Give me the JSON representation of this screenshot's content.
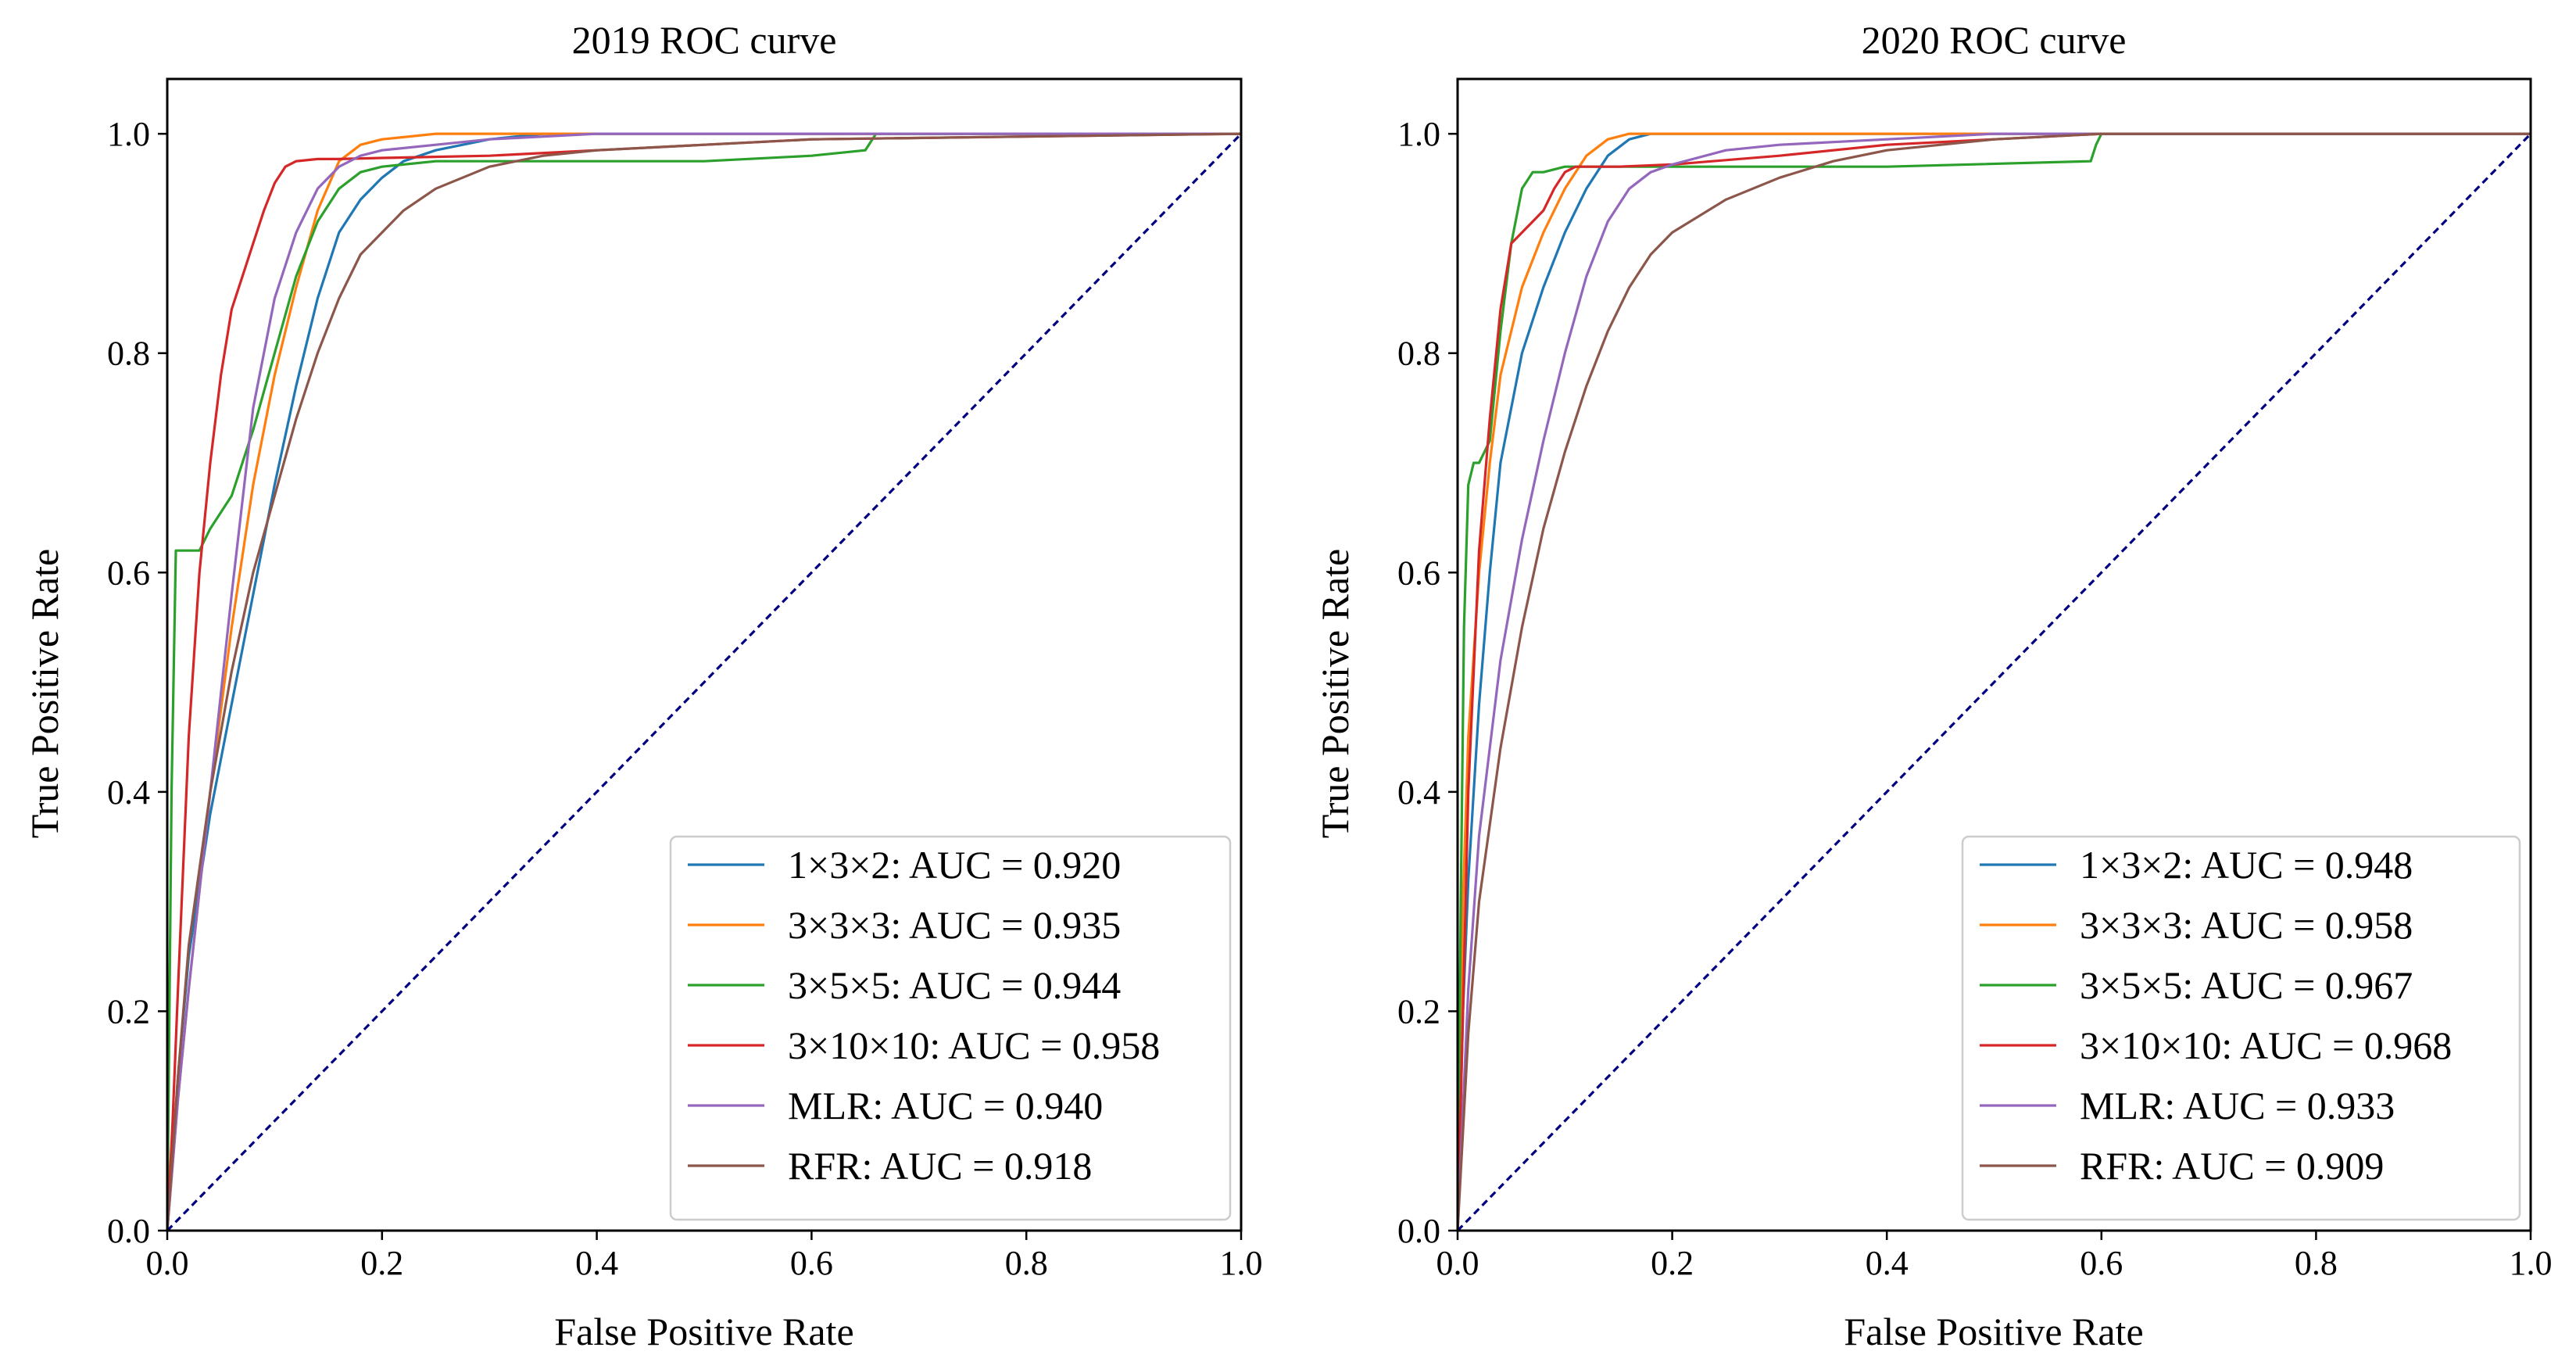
{
  "chart_data": [
    {
      "type": "line",
      "title": "2019 ROC curve",
      "xlabel": "False Positive Rate",
      "ylabel": "True Positive Rate",
      "xlim": [
        0.0,
        1.0
      ],
      "ylim": [
        0.0,
        1.05
      ],
      "xticks": [
        "0.0",
        "0.2",
        "0.4",
        "0.6",
        "0.8",
        "1.0"
      ],
      "yticks": [
        "0.0",
        "0.2",
        "0.4",
        "0.6",
        "0.8",
        "1.0"
      ],
      "legend_position": "lower-right",
      "series": [
        {
          "name": "1×3×2: AUC = 0.920",
          "color": "#1f77b4",
          "x": [
            0,
            0.01,
            0.02,
            0.04,
            0.06,
            0.08,
            0.1,
            0.12,
            0.14,
            0.16,
            0.18,
            0.2,
            0.22,
            0.25,
            0.3,
            0.35,
            1.0
          ],
          "y": [
            0,
            0.14,
            0.25,
            0.38,
            0.48,
            0.58,
            0.68,
            0.77,
            0.85,
            0.91,
            0.94,
            0.96,
            0.975,
            0.985,
            0.995,
            1.0,
            1.0
          ]
        },
        {
          "name": "3×3×3: AUC = 0.935",
          "color": "#ff7f0e",
          "x": [
            0,
            0.01,
            0.02,
            0.04,
            0.06,
            0.08,
            0.1,
            0.12,
            0.14,
            0.16,
            0.18,
            0.2,
            0.25,
            1.0
          ],
          "y": [
            0,
            0.12,
            0.22,
            0.4,
            0.55,
            0.68,
            0.78,
            0.86,
            0.93,
            0.975,
            0.99,
            0.995,
            1.0,
            1.0
          ]
        },
        {
          "name": "3×5×5: AUC = 0.944",
          "color": "#2ca02c",
          "x": [
            0,
            0.004,
            0.008,
            0.01,
            0.03,
            0.04,
            0.06,
            0.08,
            0.1,
            0.12,
            0.14,
            0.16,
            0.18,
            0.2,
            0.25,
            0.3,
            0.5,
            0.6,
            0.65,
            0.66,
            0.67,
            1.0
          ],
          "y": [
            0,
            0.4,
            0.62,
            0.62,
            0.62,
            0.64,
            0.67,
            0.73,
            0.8,
            0.87,
            0.92,
            0.95,
            0.965,
            0.97,
            0.975,
            0.975,
            0.975,
            0.98,
            0.985,
            1.0,
            1.0,
            1.0
          ]
        },
        {
          "name": "3×10×10: AUC = 0.958",
          "color": "#d62728",
          "x": [
            0,
            0.005,
            0.01,
            0.02,
            0.03,
            0.04,
            0.05,
            0.06,
            0.07,
            0.08,
            0.09,
            0.1,
            0.11,
            0.12,
            0.14,
            0.16,
            0.2,
            0.3,
            0.4,
            0.5,
            0.6,
            1.0
          ],
          "y": [
            0,
            0.1,
            0.22,
            0.45,
            0.6,
            0.7,
            0.78,
            0.84,
            0.87,
            0.9,
            0.93,
            0.955,
            0.97,
            0.975,
            0.977,
            0.977,
            0.978,
            0.98,
            0.985,
            0.99,
            0.995,
            1.0
          ]
        },
        {
          "name": "MLR: AUC = 0.940",
          "color": "#9467bd",
          "x": [
            0,
            0.01,
            0.02,
            0.04,
            0.06,
            0.08,
            0.1,
            0.12,
            0.14,
            0.16,
            0.18,
            0.2,
            0.25,
            0.3,
            0.4,
            0.5,
            1.0
          ],
          "y": [
            0,
            0.12,
            0.22,
            0.4,
            0.58,
            0.75,
            0.85,
            0.91,
            0.95,
            0.97,
            0.98,
            0.985,
            0.99,
            0.995,
            1.0,
            1.0,
            1.0
          ]
        },
        {
          "name": "RFR: AUC = 0.918",
          "color": "#8c564b",
          "x": [
            0,
            0.01,
            0.02,
            0.04,
            0.06,
            0.08,
            0.1,
            0.12,
            0.14,
            0.16,
            0.18,
            0.2,
            0.22,
            0.25,
            0.3,
            0.35,
            0.4,
            0.5,
            0.6,
            1.0
          ],
          "y": [
            0,
            0.14,
            0.26,
            0.4,
            0.51,
            0.6,
            0.67,
            0.74,
            0.8,
            0.85,
            0.89,
            0.91,
            0.93,
            0.95,
            0.97,
            0.98,
            0.985,
            0.99,
            0.995,
            1.0
          ]
        }
      ],
      "reference_line": {
        "x": [
          0,
          1
        ],
        "y": [
          0,
          1
        ],
        "color": "#000080",
        "style": "dashed"
      }
    },
    {
      "type": "line",
      "title": "2020 ROC curve",
      "xlabel": "False Positive Rate",
      "ylabel": "True Positive Rate",
      "xlim": [
        0.0,
        1.0
      ],
      "ylim": [
        0.0,
        1.05
      ],
      "xticks": [
        "0.0",
        "0.2",
        "0.4",
        "0.6",
        "0.8",
        "1.0"
      ],
      "yticks": [
        "0.0",
        "0.2",
        "0.4",
        "0.6",
        "0.8",
        "1.0"
      ],
      "legend_position": "lower-right",
      "series": [
        {
          "name": "1×3×2: AUC = 0.948",
          "color": "#1f77b4",
          "x": [
            0,
            0.005,
            0.01,
            0.02,
            0.03,
            0.04,
            0.06,
            0.08,
            0.1,
            0.12,
            0.14,
            0.16,
            0.18,
            0.2,
            1.0
          ],
          "y": [
            0,
            0.2,
            0.32,
            0.48,
            0.6,
            0.7,
            0.8,
            0.86,
            0.91,
            0.95,
            0.98,
            0.995,
            1.0,
            1.0,
            1.0
          ]
        },
        {
          "name": "3×3×3: AUC = 0.958",
          "color": "#ff7f0e",
          "x": [
            0,
            0.005,
            0.01,
            0.02,
            0.03,
            0.04,
            0.06,
            0.08,
            0.1,
            0.12,
            0.14,
            0.16,
            0.2,
            1.0
          ],
          "y": [
            0,
            0.3,
            0.45,
            0.6,
            0.7,
            0.78,
            0.86,
            0.91,
            0.95,
            0.98,
            0.995,
            1.0,
            1.0,
            1.0
          ]
        },
        {
          "name": "3×5×5: AUC = 0.967",
          "color": "#2ca02c",
          "x": [
            0,
            0.003,
            0.006,
            0.01,
            0.015,
            0.02,
            0.03,
            0.04,
            0.05,
            0.06,
            0.07,
            0.08,
            0.1,
            0.2,
            0.4,
            0.59,
            0.595,
            0.6,
            1.0
          ],
          "y": [
            0,
            0.3,
            0.55,
            0.68,
            0.7,
            0.7,
            0.72,
            0.82,
            0.9,
            0.95,
            0.965,
            0.965,
            0.97,
            0.97,
            0.97,
            0.975,
            0.99,
            1.0,
            1.0
          ]
        },
        {
          "name": "3×10×10: AUC = 0.968",
          "color": "#d62728",
          "x": [
            0,
            0.005,
            0.01,
            0.02,
            0.03,
            0.04,
            0.05,
            0.06,
            0.07,
            0.08,
            0.09,
            0.1,
            0.11,
            0.12,
            0.15,
            0.2,
            0.3,
            0.4,
            0.5,
            0.6,
            1.0
          ],
          "y": [
            0,
            0.2,
            0.4,
            0.62,
            0.74,
            0.84,
            0.9,
            0.91,
            0.92,
            0.93,
            0.95,
            0.965,
            0.97,
            0.97,
            0.97,
            0.972,
            0.98,
            0.99,
            0.995,
            1.0,
            1.0
          ]
        },
        {
          "name": "MLR: AUC = 0.933",
          "color": "#9467bd",
          "x": [
            0,
            0.01,
            0.02,
            0.04,
            0.06,
            0.08,
            0.1,
            0.12,
            0.14,
            0.16,
            0.18,
            0.2,
            0.25,
            0.3,
            0.4,
            0.5,
            0.6,
            1.0
          ],
          "y": [
            0,
            0.22,
            0.36,
            0.52,
            0.63,
            0.72,
            0.8,
            0.87,
            0.92,
            0.95,
            0.965,
            0.972,
            0.985,
            0.99,
            0.995,
            1.0,
            1.0,
            1.0
          ]
        },
        {
          "name": "RFR: AUC = 0.909",
          "color": "#8c564b",
          "x": [
            0,
            0.01,
            0.02,
            0.04,
            0.06,
            0.08,
            0.1,
            0.12,
            0.14,
            0.16,
            0.18,
            0.2,
            0.25,
            0.3,
            0.35,
            0.4,
            0.5,
            0.6,
            1.0
          ],
          "y": [
            0,
            0.18,
            0.3,
            0.44,
            0.55,
            0.64,
            0.71,
            0.77,
            0.82,
            0.86,
            0.89,
            0.91,
            0.94,
            0.96,
            0.975,
            0.985,
            0.995,
            1.0,
            1.0
          ]
        }
      ],
      "reference_line": {
        "x": [
          0,
          1
        ],
        "y": [
          0,
          1
        ],
        "color": "#000080",
        "style": "dashed"
      }
    }
  ]
}
